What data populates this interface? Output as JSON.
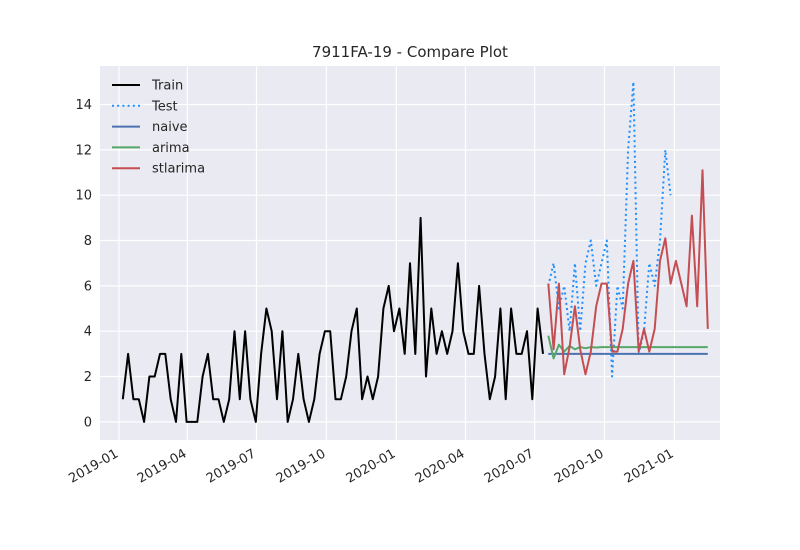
{
  "chart_data": {
    "type": "line",
    "title": "7911FA-19 - Compare Plot",
    "xlabel": "",
    "ylabel": "",
    "x_axis_type": "date",
    "xlim": [
      "2018-12-07",
      "2021-03-02"
    ],
    "ylim": [
      -0.8,
      15.7
    ],
    "x_ticks": [
      "2019-01-01",
      "2019-04-01",
      "2019-07-01",
      "2019-10-01",
      "2020-01-01",
      "2020-04-01",
      "2020-07-01",
      "2020-10-01",
      "2021-01-01"
    ],
    "x_tick_labels": [
      "2019-01",
      "2019-04",
      "2019-07",
      "2019-10",
      "2020-01",
      "2020-04",
      "2020-07",
      "2020-10",
      "2021-01"
    ],
    "y_ticks": [
      0,
      2,
      4,
      6,
      8,
      10,
      12,
      14
    ],
    "y_tick_labels": [
      "0",
      "2",
      "4",
      "6",
      "8",
      "10",
      "12",
      "14"
    ],
    "grid": true,
    "background": "#eaeaf2",
    "legend_position": "top-left",
    "series": [
      {
        "name": "Train",
        "color": "#000000",
        "style": "solid",
        "points": [
          [
            "2019-01-06",
            1
          ],
          [
            "2019-01-13",
            3
          ],
          [
            "2019-01-20",
            1
          ],
          [
            "2019-01-27",
            1
          ],
          [
            "2019-02-03",
            0
          ],
          [
            "2019-02-10",
            2
          ],
          [
            "2019-02-17",
            2
          ],
          [
            "2019-02-24",
            3
          ],
          [
            "2019-03-03",
            3
          ],
          [
            "2019-03-10",
            1
          ],
          [
            "2019-03-17",
            0
          ],
          [
            "2019-03-24",
            3
          ],
          [
            "2019-03-31",
            0
          ],
          [
            "2019-04-07",
            0
          ],
          [
            "2019-04-14",
            0
          ],
          [
            "2019-04-21",
            2
          ],
          [
            "2019-04-28",
            3
          ],
          [
            "2019-05-05",
            1
          ],
          [
            "2019-05-12",
            1
          ],
          [
            "2019-05-19",
            0
          ],
          [
            "2019-05-26",
            1
          ],
          [
            "2019-06-02",
            4
          ],
          [
            "2019-06-09",
            1
          ],
          [
            "2019-06-16",
            4
          ],
          [
            "2019-06-23",
            1
          ],
          [
            "2019-06-30",
            0
          ],
          [
            "2019-07-07",
            3
          ],
          [
            "2019-07-14",
            5
          ],
          [
            "2019-07-21",
            4
          ],
          [
            "2019-07-28",
            1
          ],
          [
            "2019-08-04",
            4
          ],
          [
            "2019-08-11",
            0
          ],
          [
            "2019-08-18",
            1
          ],
          [
            "2019-08-25",
            3
          ],
          [
            "2019-09-01",
            1
          ],
          [
            "2019-09-08",
            0
          ],
          [
            "2019-09-15",
            1
          ],
          [
            "2019-09-22",
            3
          ],
          [
            "2019-09-29",
            4
          ],
          [
            "2019-10-06",
            4
          ],
          [
            "2019-10-13",
            1
          ],
          [
            "2019-10-20",
            1
          ],
          [
            "2019-10-27",
            2
          ],
          [
            "2019-11-03",
            4
          ],
          [
            "2019-11-10",
            5
          ],
          [
            "2019-11-17",
            1
          ],
          [
            "2019-11-24",
            2
          ],
          [
            "2019-12-01",
            1
          ],
          [
            "2019-12-08",
            2
          ],
          [
            "2019-12-15",
            5
          ],
          [
            "2019-12-22",
            6
          ],
          [
            "2019-12-29",
            4
          ],
          [
            "2020-01-05",
            5
          ],
          [
            "2020-01-12",
            3
          ],
          [
            "2020-01-19",
            7
          ],
          [
            "2020-01-26",
            3
          ],
          [
            "2020-02-02",
            9
          ],
          [
            "2020-02-09",
            2
          ],
          [
            "2020-02-16",
            5
          ],
          [
            "2020-02-23",
            3
          ],
          [
            "2020-03-01",
            4
          ],
          [
            "2020-03-08",
            3
          ],
          [
            "2020-03-15",
            4
          ],
          [
            "2020-03-22",
            7
          ],
          [
            "2020-03-29",
            4
          ],
          [
            "2020-04-05",
            3
          ],
          [
            "2020-04-12",
            3
          ],
          [
            "2020-04-19",
            6
          ],
          [
            "2020-04-26",
            3
          ],
          [
            "2020-05-03",
            1
          ],
          [
            "2020-05-10",
            2
          ],
          [
            "2020-05-17",
            5
          ],
          [
            "2020-05-24",
            1
          ],
          [
            "2020-05-31",
            5
          ],
          [
            "2020-06-07",
            3
          ],
          [
            "2020-06-14",
            3
          ],
          [
            "2020-06-21",
            4
          ],
          [
            "2020-06-28",
            1
          ],
          [
            "2020-07-05",
            5
          ],
          [
            "2020-07-12",
            3
          ]
        ]
      },
      {
        "name": "Test",
        "color": "#1e8fff",
        "style": "dotted",
        "points": [
          [
            "2020-07-19",
            6
          ],
          [
            "2020-07-26",
            7
          ],
          [
            "2020-08-02",
            5
          ],
          [
            "2020-08-09",
            6
          ],
          [
            "2020-08-16",
            4
          ],
          [
            "2020-08-23",
            7
          ],
          [
            "2020-08-30",
            4
          ],
          [
            "2020-09-06",
            7
          ],
          [
            "2020-09-13",
            8
          ],
          [
            "2020-09-20",
            6
          ],
          [
            "2020-09-27",
            7
          ],
          [
            "2020-10-04",
            8
          ],
          [
            "2020-10-11",
            2
          ],
          [
            "2020-10-18",
            6
          ],
          [
            "2020-10-25",
            5
          ],
          [
            "2020-11-01",
            12
          ],
          [
            "2020-11-08",
            15
          ],
          [
            "2020-11-15",
            3
          ],
          [
            "2020-11-22",
            4
          ],
          [
            "2020-11-29",
            7
          ],
          [
            "2020-12-06",
            6
          ],
          [
            "2020-12-13",
            8
          ],
          [
            "2020-12-20",
            12
          ],
          [
            "2020-12-27",
            10
          ]
        ]
      },
      {
        "name": "naive",
        "color": "#4c72b0",
        "style": "solid",
        "points": [
          [
            "2020-07-19",
            3
          ],
          [
            "2021-02-14",
            3
          ]
        ]
      },
      {
        "name": "arima",
        "color": "#55a868",
        "style": "solid",
        "points": [
          [
            "2020-07-19",
            3.8
          ],
          [
            "2020-07-26",
            2.8
          ],
          [
            "2020-08-02",
            3.4
          ],
          [
            "2020-08-09",
            3.1
          ],
          [
            "2020-08-16",
            3.35
          ],
          [
            "2020-08-23",
            3.2
          ],
          [
            "2020-08-30",
            3.3
          ],
          [
            "2020-09-06",
            3.25
          ],
          [
            "2020-09-13",
            3.3
          ],
          [
            "2020-09-20",
            3.28
          ],
          [
            "2020-09-27",
            3.3
          ],
          [
            "2021-02-14",
            3.3
          ]
        ]
      },
      {
        "name": "stlarima",
        "color": "#c44e52",
        "style": "solid",
        "points": [
          [
            "2020-07-19",
            6.1
          ],
          [
            "2020-07-26",
            3.2
          ],
          [
            "2020-08-02",
            6.1
          ],
          [
            "2020-08-09",
            2.1
          ],
          [
            "2020-08-16",
            3.3
          ],
          [
            "2020-08-23",
            5.1
          ],
          [
            "2020-08-30",
            3.2
          ],
          [
            "2020-09-06",
            2.1
          ],
          [
            "2020-09-13",
            3.1
          ],
          [
            "2020-09-20",
            5.1
          ],
          [
            "2020-09-27",
            6.1
          ],
          [
            "2020-10-04",
            6.1
          ],
          [
            "2020-10-11",
            3.1
          ],
          [
            "2020-10-18",
            3.1
          ],
          [
            "2020-10-25",
            4.1
          ],
          [
            "2020-11-01",
            6.1
          ],
          [
            "2020-11-08",
            7.1
          ],
          [
            "2020-11-15",
            3.1
          ],
          [
            "2020-11-22",
            4.1
          ],
          [
            "2020-11-29",
            3.1
          ],
          [
            "2020-12-06",
            4.1
          ],
          [
            "2020-12-13",
            7.1
          ],
          [
            "2020-12-20",
            8.1
          ],
          [
            "2020-12-27",
            6.1
          ],
          [
            "2021-01-03",
            7.1
          ],
          [
            "2021-01-10",
            6.1
          ],
          [
            "2021-01-17",
            5.1
          ],
          [
            "2021-01-24",
            9.1
          ],
          [
            "2021-01-31",
            5.1
          ],
          [
            "2021-02-07",
            11.1
          ],
          [
            "2021-02-14",
            4.1
          ]
        ]
      }
    ]
  }
}
